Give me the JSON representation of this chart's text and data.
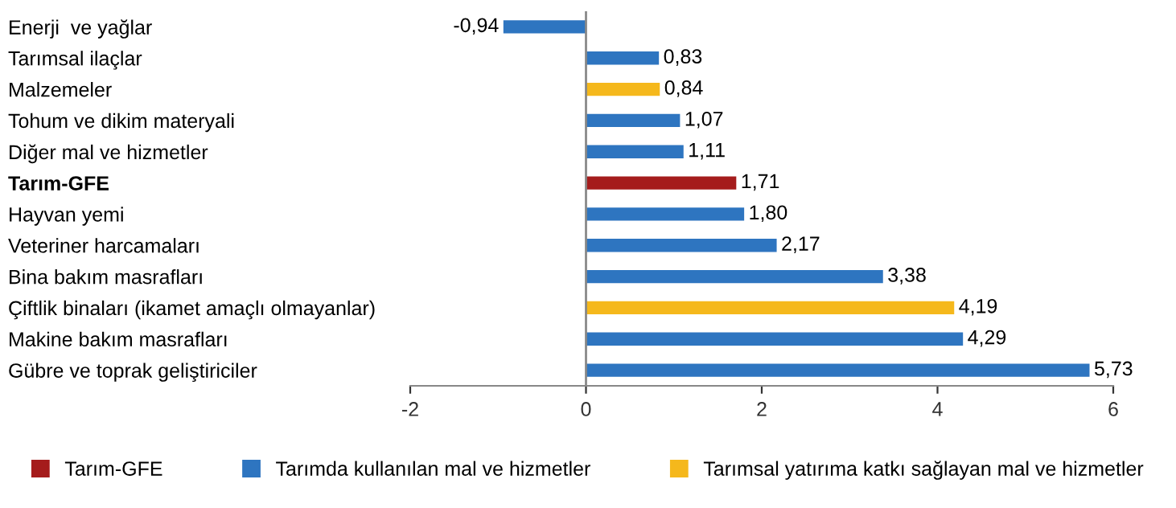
{
  "chart_data": {
    "type": "bar",
    "orientation": "horizontal",
    "categories": [
      "Enerji  ve yağlar",
      "Tarımsal ilaçlar",
      "Malzemeler",
      "Tohum ve dikim materyali",
      "Diğer mal ve hizmetler",
      "Tarım-GFE",
      "Hayvan yemi",
      "Veteriner harcamaları",
      "Bina bakım masrafları",
      "Çiftlik binaları (ikamet amaçlı olmayanlar)",
      "Makine bakım masrafları",
      "Gübre ve toprak geliştiriciler"
    ],
    "series": [
      {
        "name": "Tarım-GFE",
        "color": "#a51c1c",
        "values": [
          null,
          null,
          null,
          null,
          null,
          1.71,
          null,
          null,
          null,
          null,
          null,
          null
        ],
        "value_labels": [
          null,
          null,
          null,
          null,
          null,
          "1,71",
          null,
          null,
          null,
          null,
          null,
          null
        ]
      },
      {
        "name": "Tarımda kullanılan mal ve hizmetler",
        "color": "#2e75c0",
        "values": [
          -0.94,
          0.83,
          null,
          1.07,
          1.11,
          null,
          1.8,
          2.17,
          3.38,
          null,
          4.29,
          5.73
        ],
        "value_labels": [
          "-0,94",
          "0,83",
          null,
          "1,07",
          "1,11",
          null,
          "1,80",
          "2,17",
          "3,38",
          null,
          "4,29",
          "5,73"
        ]
      },
      {
        "name": "Tarımsal yatırıma katkı sağlayan mal ve hizmetler",
        "color": "#f5b81c",
        "values": [
          null,
          null,
          0.84,
          null,
          null,
          null,
          null,
          null,
          null,
          4.19,
          null,
          null
        ],
        "value_labels": [
          null,
          null,
          "0,84",
          null,
          null,
          null,
          null,
          null,
          null,
          "4,19",
          null,
          null
        ]
      }
    ],
    "xlim": [
      -2,
      6
    ],
    "xticks": [
      -2,
      0,
      2,
      4,
      6
    ],
    "grid": false,
    "legend": "bottom",
    "ref_lines": [
      {
        "axis": "x",
        "value": 0,
        "color": "#888888"
      }
    ]
  }
}
